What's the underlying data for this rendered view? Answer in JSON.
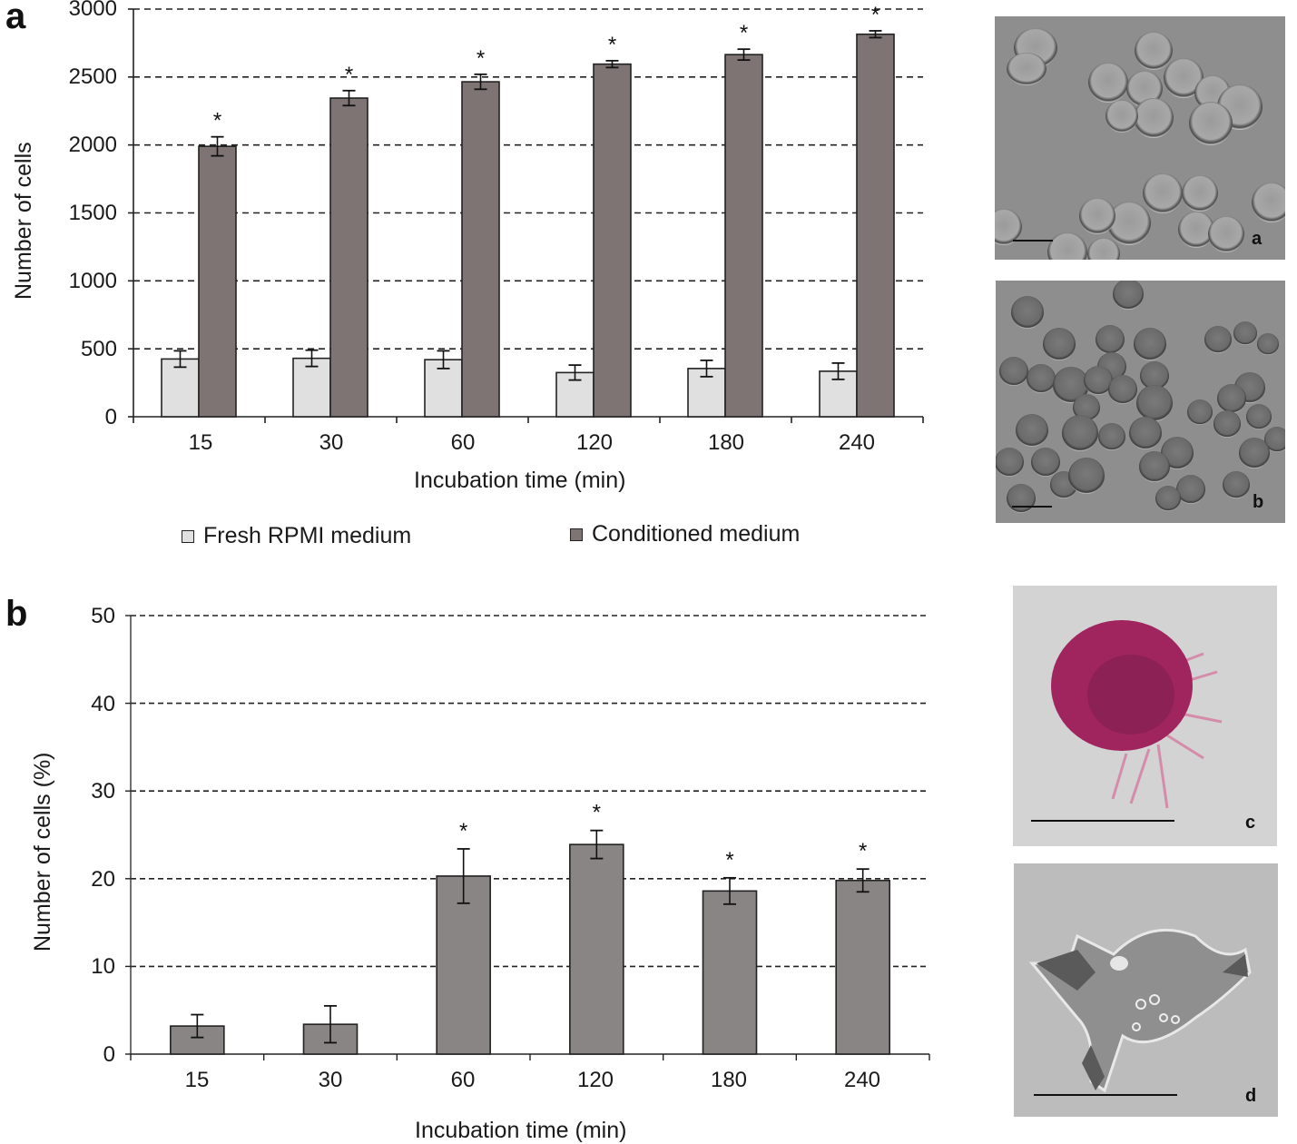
{
  "figure": {
    "panel_a_letter": "a",
    "panel_b_letter": "b"
  },
  "chart_a": {
    "ylabel": "Number of cells",
    "xlabel": "Incubation time (min)",
    "yticks": [
      "3000",
      "2500",
      "2000",
      "1500",
      "1000",
      "500",
      "0"
    ],
    "xticks": [
      "15",
      "30",
      "60",
      "120",
      "180",
      "240"
    ],
    "legend": {
      "fresh": "Fresh RPMI medium",
      "conditioned": "Conditioned medium"
    },
    "significance_marker": "*"
  },
  "chart_b": {
    "ylabel": "Number of cells (%)",
    "xlabel": "Incubation time (min)",
    "yticks": [
      "50",
      "40",
      "30",
      "20",
      "10",
      "0"
    ],
    "xticks": [
      "15",
      "30",
      "60",
      "120",
      "180",
      "240"
    ],
    "significance_marker": "*"
  },
  "micrographs": {
    "a": {
      "label": "a"
    },
    "b": {
      "label": "b"
    },
    "c": {
      "label": "c"
    },
    "d": {
      "label": "d"
    }
  },
  "colors": {
    "fresh_bar": "#e0e0e0",
    "conditioned_bar": "#7d7473",
    "chart_b_bar": "#888584",
    "axis": "#222222",
    "grid": "#222222",
    "micro_gray": "#9a9a9a",
    "stain_magenta": "#a0255e"
  },
  "chart_data": [
    {
      "type": "bar",
      "title": "",
      "panel": "a",
      "categories": [
        "15",
        "30",
        "60",
        "120",
        "180",
        "240"
      ],
      "xlabel": "Incubation time (min)",
      "ylabel": "Number of cells",
      "ylim": [
        0,
        3000
      ],
      "yticks": [
        0,
        500,
        1000,
        1500,
        2000,
        2500,
        3000
      ],
      "grid": "horizontal dashed",
      "legend_position": "bottom",
      "series": [
        {
          "name": "Fresh RPMI medium",
          "values": [
            425,
            430,
            420,
            325,
            355,
            335
          ],
          "errors": [
            60,
            60,
            65,
            55,
            60,
            60
          ],
          "color": "#e0e0e0"
        },
        {
          "name": "Conditioned medium",
          "values": [
            1990,
            2345,
            2465,
            2595,
            2665,
            2815
          ],
          "errors": [
            70,
            55,
            55,
            25,
            40,
            25
          ],
          "color": "#7d7473",
          "significant": [
            true,
            true,
            true,
            true,
            true,
            true
          ]
        }
      ],
      "annotations": [
        "* above each Conditioned medium bar"
      ]
    },
    {
      "type": "bar",
      "title": "",
      "panel": "b",
      "categories": [
        "15",
        "30",
        "60",
        "120",
        "180",
        "240"
      ],
      "xlabel": "Incubation time (min)",
      "ylabel": "Number of cells (%)",
      "ylim": [
        0,
        50
      ],
      "yticks": [
        0,
        10,
        20,
        30,
        40,
        50
      ],
      "grid": "horizontal dashed",
      "series": [
        {
          "name": "Cells (%)",
          "values": [
            3.2,
            3.4,
            20.3,
            23.9,
            18.6,
            19.8
          ],
          "errors": [
            1.3,
            2.1,
            3.1,
            1.6,
            1.5,
            1.3
          ],
          "color": "#888584",
          "significant": [
            false,
            false,
            true,
            true,
            true,
            true
          ]
        }
      ],
      "annotations": [
        "* above bars at 60, 120, 180, 240 min"
      ]
    }
  ]
}
